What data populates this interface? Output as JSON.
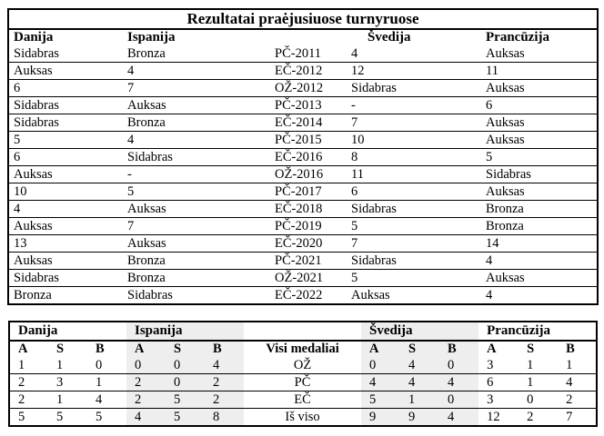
{
  "title": "Rezultatai praėjusiuose turnyruose",
  "colors": {
    "border": "#000000",
    "text": "#000000",
    "group_shading": "#eeeeee"
  },
  "results_table": {
    "columns": [
      "Danija",
      "Ispanija",
      "",
      "Švedija",
      "Prancūzija"
    ],
    "rows": [
      [
        "Sidabras",
        "Bronza",
        "PČ-2011",
        "4",
        "Auksas"
      ],
      [
        "Auksas",
        "4",
        "EČ-2012",
        "12",
        "11"
      ],
      [
        "6",
        "7",
        "OŽ-2012",
        "Sidabras",
        "Auksas"
      ],
      [
        "Sidabras",
        "Auksas",
        "PČ-2013",
        "-",
        "6"
      ],
      [
        "Sidabras",
        "Bronza",
        "EČ-2014",
        "7",
        "Auksas"
      ],
      [
        "5",
        "4",
        "PČ-2015",
        "10",
        "Auksas"
      ],
      [
        "6",
        "Sidabras",
        "EČ-2016",
        "8",
        "5"
      ],
      [
        "Auksas",
        "-",
        "OŽ-2016",
        "11",
        "Sidabras"
      ],
      [
        "10",
        "5",
        "PČ-2017",
        "6",
        "Auksas"
      ],
      [
        "4",
        "Auksas",
        "EČ-2018",
        "Sidabras",
        "Bronza"
      ],
      [
        "Auksas",
        "7",
        "PČ-2019",
        "5",
        "Bronza"
      ],
      [
        "13",
        "Auksas",
        "EČ-2020",
        "7",
        "14"
      ],
      [
        "Auksas",
        "Bronza",
        "PČ-2021",
        "Sidabras",
        "4"
      ],
      [
        "Sidabras",
        "Bronza",
        "OŽ-2021",
        "5",
        "Auksas"
      ],
      [
        "Bronza",
        "Sidabras",
        "EČ-2022",
        "Auksas",
        "4"
      ]
    ]
  },
  "medals_table": {
    "groups": [
      {
        "label": "Danija",
        "key": "danija",
        "shaded": false
      },
      {
        "label": "Ispanija",
        "key": "ispanija",
        "shaded": true
      },
      {
        "label": "Švedija",
        "key": "svedija",
        "shaded": true
      },
      {
        "label": "Prancūzija",
        "key": "prancuzija",
        "shaded": false
      }
    ],
    "sub_columns": [
      "A",
      "S",
      "B"
    ],
    "center_header": "Visi medaliai",
    "rows": [
      {
        "label": "OŽ",
        "danija": [
          1,
          1,
          0
        ],
        "ispanija": [
          0,
          0,
          4
        ],
        "svedija": [
          0,
          4,
          0
        ],
        "prancuzija": [
          3,
          1,
          1
        ]
      },
      {
        "label": "PČ",
        "danija": [
          2,
          3,
          1
        ],
        "ispanija": [
          2,
          0,
          2
        ],
        "svedija": [
          4,
          4,
          4
        ],
        "prancuzija": [
          6,
          1,
          4
        ]
      },
      {
        "label": "EČ",
        "danija": [
          2,
          1,
          4
        ],
        "ispanija": [
          2,
          5,
          2
        ],
        "svedija": [
          5,
          1,
          0
        ],
        "prancuzija": [
          3,
          0,
          2
        ]
      },
      {
        "label": "Iš viso",
        "danija": [
          5,
          5,
          5
        ],
        "ispanija": [
          4,
          5,
          8
        ],
        "svedija": [
          9,
          9,
          4
        ],
        "prancuzija": [
          12,
          2,
          7
        ]
      }
    ]
  }
}
